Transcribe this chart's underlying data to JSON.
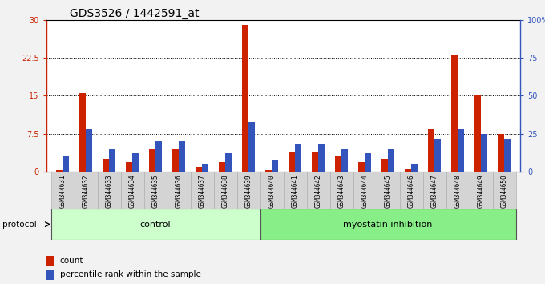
{
  "title": "GDS3526 / 1442591_at",
  "samples": [
    "GSM344631",
    "GSM344632",
    "GSM344633",
    "GSM344634",
    "GSM344635",
    "GSM344636",
    "GSM344637",
    "GSM344638",
    "GSM344639",
    "GSM344640",
    "GSM344641",
    "GSM344642",
    "GSM344643",
    "GSM344644",
    "GSM344645",
    "GSM344646",
    "GSM344647",
    "GSM344648",
    "GSM344649",
    "GSM344650"
  ],
  "count_values": [
    0.3,
    15.5,
    2.5,
    2.0,
    4.5,
    4.5,
    1.0,
    2.0,
    29.0,
    0.3,
    4.0,
    4.0,
    3.0,
    2.0,
    2.5,
    0.5,
    8.5,
    23.0,
    15.0,
    7.5
  ],
  "percentile_values_pct": [
    10,
    28,
    15,
    12,
    20,
    20,
    5,
    12,
    33,
    8,
    18,
    18,
    15,
    12,
    15,
    5,
    22,
    28,
    25,
    22
  ],
  "groups": [
    {
      "label": "control",
      "start": 0,
      "end": 9,
      "color": "#ccffcc",
      "dark_color": "#66cc66"
    },
    {
      "label": "myostatin inhibition",
      "start": 9,
      "end": 20,
      "color": "#88ee88",
      "dark_color": "#44aa44"
    }
  ],
  "ylim_left": [
    0,
    30
  ],
  "ylim_right": [
    0,
    100
  ],
  "yticks_left": [
    0,
    7.5,
    15,
    22.5,
    30
  ],
  "ytick_labels_left": [
    "0",
    "7.5",
    "15",
    "22.5",
    "30"
  ],
  "yticks_right": [
    0,
    25,
    50,
    75,
    100
  ],
  "ytick_labels_right": [
    "0",
    "25",
    "50",
    "75",
    "100%"
  ],
  "bar_color_red": "#cc2200",
  "bar_color_blue": "#3355bb",
  "grid_color": "#000000",
  "title_fontsize": 10,
  "tick_fontsize": 7,
  "label_fontsize": 5.5,
  "legend_label_count": "count",
  "legend_label_percentile": "percentile rank within the sample",
  "protocol_label": "protocol",
  "group_label_fontsize": 8,
  "cell_bg": "#d4d4d4",
  "cell_border": "#aaaaaa"
}
